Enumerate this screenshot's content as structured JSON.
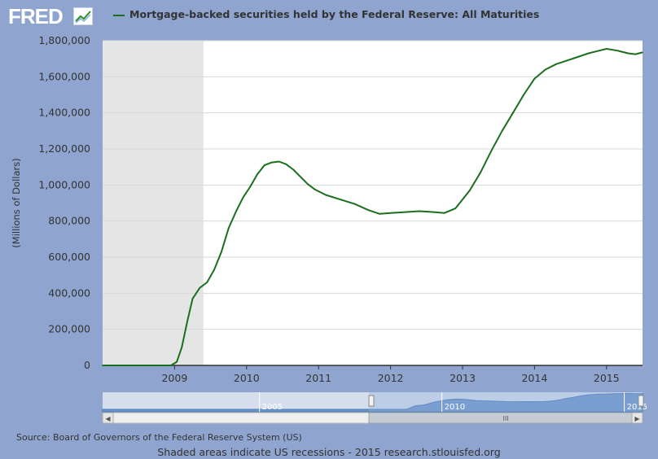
{
  "brand": {
    "logo_text": "FRED",
    "logo_icon": "trend-chart-icon"
  },
  "colors": {
    "background": "#8fa5cf",
    "series": "#196f1d",
    "recession": "#e5e5e5",
    "plot_bg": "#ffffff",
    "nav_fill": "#6f96c8"
  },
  "legend": {
    "label": "Mortgage-backed securities held by the Federal Reserve: All Maturities"
  },
  "footer": {
    "source": "Source: Board of Governors of the Federal Reserve System (US)",
    "note": "Shaded areas indicate US recessions - 2015 research.stlouisfed.org"
  },
  "navigator": {
    "labels": [
      "2005",
      "2010",
      "2015"
    ],
    "scrollbar_grip": "III",
    "left_arrow": "◀",
    "right_arrow": "▶"
  },
  "chart_data": {
    "type": "line",
    "ylabel": "(Millions of Dollars)",
    "ylim": [
      0,
      1800000
    ],
    "yticks": [
      0,
      200000,
      400000,
      600000,
      800000,
      1000000,
      1200000,
      1400000,
      1600000,
      1800000
    ],
    "ytick_labels": [
      "0",
      "200,000",
      "400,000",
      "600,000",
      "800,000",
      "1,000,000",
      "1,200,000",
      "1,400,000",
      "1,600,000",
      "1,800,000"
    ],
    "xlim": [
      2008.0,
      2015.5
    ],
    "xticks": [
      2009,
      2010,
      2011,
      2012,
      2013,
      2014,
      2015
    ],
    "xtick_labels": [
      "2009",
      "2010",
      "2011",
      "2012",
      "2013",
      "2014",
      "2015"
    ],
    "grid": true,
    "recession": {
      "start": 2008.0,
      "end": 2009.4
    },
    "series": [
      {
        "name": "Mortgage-backed securities held by the Federal Reserve: All Maturities",
        "x": [
          2008.0,
          2008.5,
          2008.95,
          2009.03,
          2009.1,
          2009.18,
          2009.25,
          2009.35,
          2009.45,
          2009.55,
          2009.65,
          2009.75,
          2009.85,
          2009.95,
          2010.05,
          2010.15,
          2010.25,
          2010.35,
          2010.45,
          2010.55,
          2010.65,
          2010.75,
          2010.85,
          2010.95,
          2011.1,
          2011.3,
          2011.5,
          2011.7,
          2011.85,
          2012.0,
          2012.2,
          2012.4,
          2012.6,
          2012.75,
          2012.9,
          2013.0,
          2013.1,
          2013.25,
          2013.4,
          2013.55,
          2013.7,
          2013.85,
          2014.0,
          2014.15,
          2014.3,
          2014.45,
          2014.6,
          2014.75,
          2014.9,
          2015.0,
          2015.15,
          2015.3,
          2015.4,
          2015.5
        ],
        "values": [
          0,
          0,
          0,
          20000,
          100000,
          250000,
          370000,
          430000,
          460000,
          530000,
          630000,
          760000,
          850000,
          930000,
          990000,
          1060000,
          1110000,
          1125000,
          1130000,
          1115000,
          1085000,
          1045000,
          1005000,
          975000,
          945000,
          920000,
          895000,
          860000,
          840000,
          845000,
          850000,
          855000,
          850000,
          845000,
          870000,
          920000,
          970000,
          1070000,
          1190000,
          1300000,
          1400000,
          1500000,
          1590000,
          1640000,
          1670000,
          1690000,
          1710000,
          1730000,
          1745000,
          1755000,
          1745000,
          1730000,
          1725000,
          1735000
        ]
      }
    ]
  }
}
